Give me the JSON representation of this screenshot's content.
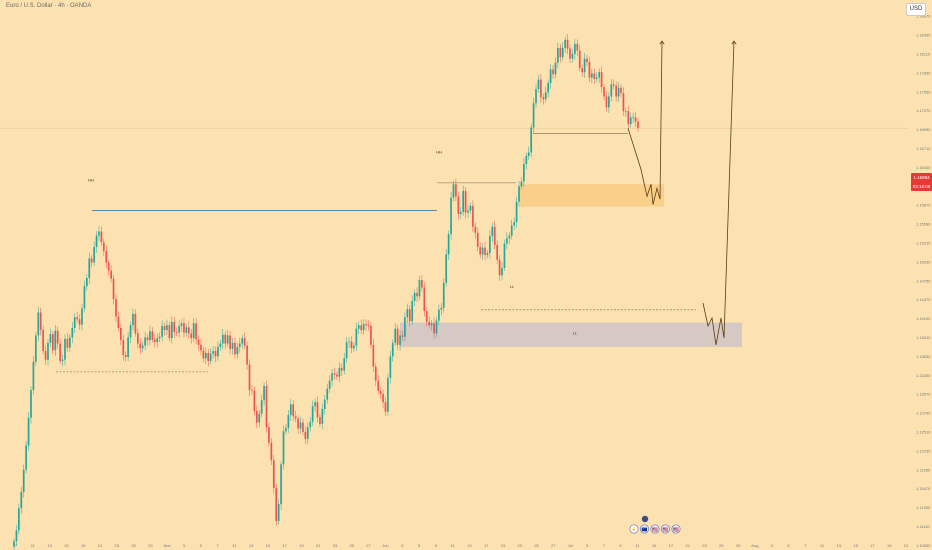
{
  "header": {
    "symbol_title": "Euro / U.S. Dollar · 4h · OANDA",
    "currency_button": "USD"
  },
  "price_tag": {
    "price": "1.16894",
    "countdown": "03:16:09"
  },
  "colors": {
    "background": "#FBE2B0",
    "bull": "#26a69a",
    "bear": "#ef5350",
    "supply_zone": "#f9cf8a",
    "demand_zone": "#d6c8c3",
    "projection": "#5c3d12"
  },
  "chart_data": {
    "type": "candlestick",
    "price_scale": [
      "1.10830",
      "1.11110",
      "1.11390",
      "1.11670",
      "1.11950",
      "1.12230",
      "1.12510",
      "1.12790",
      "1.13070",
      "1.13350",
      "1.13630",
      "1.13910",
      "1.14190",
      "1.14470",
      "1.14750",
      "1.15030",
      "1.15310",
      "1.15590",
      "1.15870",
      "1.16150",
      "1.16430",
      "1.16710",
      "1.16990",
      "1.17270",
      "1.17550",
      "1.17830",
      "1.18110",
      "1.18390",
      "1.18670"
    ],
    "ylim": [
      1.1085,
      1.1885
    ],
    "time_labels": [
      "7",
      "11",
      "13",
      "15",
      "19",
      "21",
      "23",
      "25",
      "29",
      "Nov",
      "3",
      "5",
      "7",
      "11",
      "13",
      "15",
      "17",
      "19",
      "21",
      "23",
      "25",
      "27",
      "Jun",
      "3",
      "5",
      "9",
      "11",
      "13",
      "17",
      "19",
      "23",
      "25",
      "27",
      "Jul",
      "3",
      "7",
      "9",
      "11",
      "15",
      "17",
      "21",
      "23",
      "25",
      "29",
      "Aug",
      "3",
      "5",
      "7",
      "11",
      "13",
      "15",
      "17",
      "19",
      "21"
    ],
    "closes": [
      1.1089,
      1.1105,
      1.1138,
      1.1162,
      1.1195,
      1.1231,
      1.1272,
      1.1313,
      1.1355,
      1.1394,
      1.1428,
      1.1402,
      1.1371,
      1.1358,
      1.1383,
      1.1396,
      1.1372,
      1.1401,
      1.1382,
      1.1356,
      1.1358,
      1.1389,
      1.1376,
      1.1391,
      1.1405,
      1.1421,
      1.1418,
      1.141,
      1.1434,
      1.1467,
      1.1479,
      1.1508,
      1.1502,
      1.1525,
      1.1542,
      1.1548,
      1.1532,
      1.1519,
      1.1502,
      1.149,
      1.1478,
      1.1448,
      1.1422,
      1.1405,
      1.1387,
      1.1365,
      1.1362,
      1.1391,
      1.1409,
      1.1426,
      1.1397,
      1.1382,
      1.1375,
      1.1379,
      1.1391,
      1.1387,
      1.14,
      1.1388,
      1.1384,
      1.139,
      1.1392,
      1.1408,
      1.1402,
      1.1409,
      1.139,
      1.1414,
      1.1399,
      1.1398,
      1.1408,
      1.1412,
      1.1398,
      1.1406,
      1.1397,
      1.139,
      1.1412,
      1.1388,
      1.138,
      1.1372,
      1.136,
      1.1368,
      1.1356,
      1.1367,
      1.1371,
      1.1363,
      1.1377,
      1.1382,
      1.1395,
      1.1382,
      1.1394,
      1.1374,
      1.1383,
      1.1366,
      1.1377,
      1.1382,
      1.139,
      1.1379,
      1.1351,
      1.1313,
      1.1312,
      1.1282,
      1.1265,
      1.1278,
      1.1298,
      1.1319,
      1.1258,
      1.1235,
      1.1209,
      1.1168,
      1.1119,
      1.1144,
      1.1203,
      1.1252,
      1.1257,
      1.1276,
      1.1292,
      1.1274,
      1.1271,
      1.1256,
      1.1265,
      1.1251,
      1.1241,
      1.1258,
      1.1266,
      1.1289,
      1.1295,
      1.1273,
      1.1263,
      1.1285,
      1.1299,
      1.1315,
      1.1327,
      1.1338,
      1.1336,
      1.1333,
      1.1346,
      1.1342,
      1.136,
      1.1384,
      1.1385,
      1.1375,
      1.1379,
      1.1404,
      1.1409,
      1.1402,
      1.1411,
      1.1409,
      1.1408,
      1.138,
      1.1348,
      1.1327,
      1.1312,
      1.1307,
      1.1295,
      1.1281,
      1.1331,
      1.1363,
      1.1383,
      1.1404,
      1.138,
      1.1394,
      1.1392,
      1.1421,
      1.1433,
      1.1415,
      1.1445,
      1.1457,
      1.1452,
      1.1476,
      1.1465,
      1.143,
      1.1414,
      1.1409,
      1.1412,
      1.1397,
      1.1416,
      1.1432,
      1.1435,
      1.1472,
      1.1514,
      1.1544,
      1.1598,
      1.1618,
      1.16,
      1.1574,
      1.1577,
      1.1608,
      1.1576,
      1.1579,
      1.1586,
      1.1555,
      1.1546,
      1.1525,
      1.1514,
      1.1524,
      1.1513,
      1.1516,
      1.1541,
      1.1555,
      1.1528,
      1.1506,
      1.1483,
      1.1494,
      1.153,
      1.1538,
      1.1542,
      1.1557,
      1.1562,
      1.1592,
      1.1615,
      1.1622,
      1.1648,
      1.166,
      1.1665,
      1.1702,
      1.1738,
      1.1759,
      1.1773,
      1.1747,
      1.1744,
      1.1754,
      1.1768,
      1.1788,
      1.1781,
      1.1798,
      1.182,
      1.1806,
      1.182,
      1.1832,
      1.1819,
      1.1804,
      1.1811,
      1.1826,
      1.1816,
      1.179,
      1.1784,
      1.1804,
      1.1799,
      1.1776,
      1.1782,
      1.1774,
      1.1776,
      1.1784,
      1.1762,
      1.1748,
      1.1732,
      1.1748,
      1.1766,
      1.1764,
      1.1748,
      1.1761,
      1.1753,
      1.1726,
      1.1726,
      1.1707,
      1.1717,
      1.1717,
      1.1711,
      1.1701
    ],
    "labels": [
      {
        "text": "HH",
        "price": 1.162
      },
      {
        "text": "HH",
        "price": 1.1661
      },
      {
        "text": "LL",
        "price": 1.1462
      },
      {
        "text": "LL",
        "price": 1.1393
      }
    ]
  },
  "markers": {
    "events": [
      "⚡",
      "🇪🇺",
      "🇺🇸",
      "🇺🇸",
      "🇺🇸"
    ]
  }
}
